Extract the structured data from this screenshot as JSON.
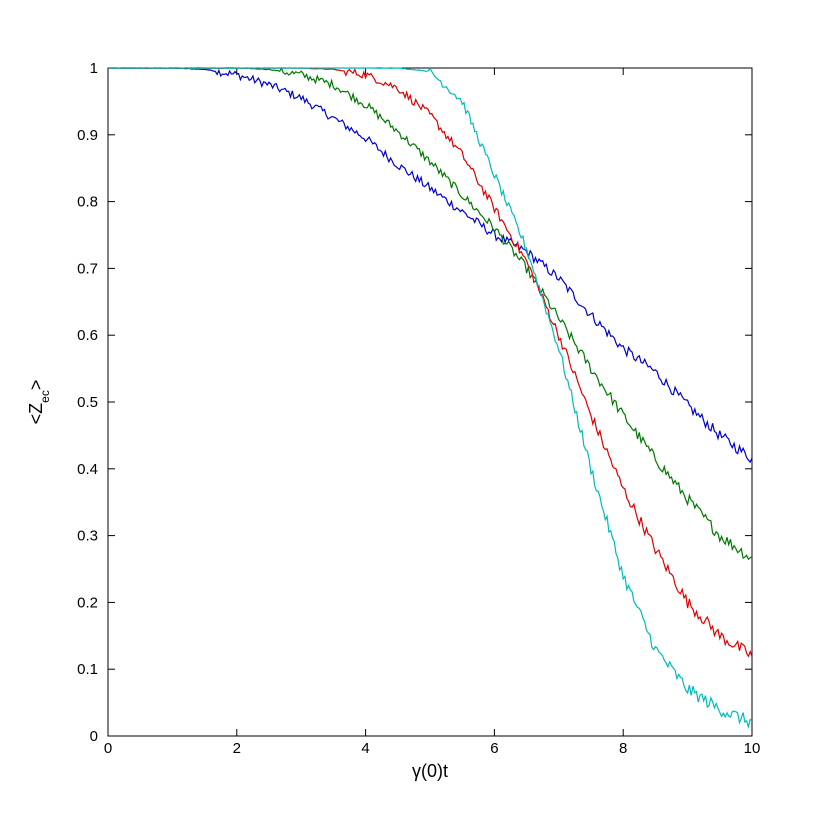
{
  "chart_data": {
    "type": "line",
    "title": "",
    "xlabel": "γ(0)t",
    "ylabel": {
      "main": "<Z",
      "subscript": "ec",
      "close": ">"
    },
    "xlim": [
      0,
      10
    ],
    "ylim": [
      0,
      1
    ],
    "xticks": [
      0,
      2,
      4,
      6,
      8,
      10
    ],
    "yticks": [
      0,
      0.1,
      0.2,
      0.3,
      0.4,
      0.5,
      0.6,
      0.7,
      0.8,
      0.9,
      1
    ],
    "xtick_labels": [
      "0",
      "2",
      "4",
      "6",
      "8",
      "10"
    ],
    "ytick_labels": [
      "0",
      "0.1",
      "0.2",
      "0.3",
      "0.4",
      "0.5",
      "0.6",
      "0.7",
      "0.8",
      "0.9",
      "1"
    ],
    "grid": false,
    "legend": "none",
    "series": [
      {
        "color": "#0000cc",
        "x": [
          0,
          0.5,
          1.0,
          1.5,
          2.0,
          2.5,
          3.0,
          3.5,
          4.0,
          4.5,
          5.0,
          5.5,
          6.0,
          6.5,
          7.0,
          7.5,
          8.0,
          8.5,
          9.0,
          9.5,
          10.0
        ],
        "y": [
          1.0,
          1.0,
          1.0,
          0.998,
          0.99,
          0.975,
          0.955,
          0.925,
          0.895,
          0.855,
          0.82,
          0.785,
          0.75,
          0.725,
          0.685,
          0.63,
          0.58,
          0.545,
          0.495,
          0.45,
          0.415
        ]
      },
      {
        "color": "#007700",
        "x": [
          0,
          1.0,
          2.0,
          2.5,
          3.0,
          3.5,
          4.0,
          4.5,
          5.0,
          5.5,
          6.0,
          6.5,
          7.0,
          7.5,
          8.0,
          8.5,
          9.0,
          9.5,
          10.0
        ],
        "y": [
          1.0,
          1.0,
          1.0,
          0.998,
          0.99,
          0.975,
          0.945,
          0.905,
          0.86,
          0.81,
          0.76,
          0.7,
          0.625,
          0.55,
          0.48,
          0.415,
          0.355,
          0.3,
          0.265
        ]
      },
      {
        "color": "#dd0000",
        "x": [
          0,
          1.0,
          2.0,
          3.0,
          3.5,
          4.0,
          4.5,
          5.0,
          5.5,
          6.0,
          6.5,
          7.0,
          7.5,
          8.0,
          8.5,
          9.0,
          9.5,
          10.0
        ],
        "y": [
          1.0,
          1.0,
          1.0,
          1.0,
          0.998,
          0.99,
          0.97,
          0.93,
          0.87,
          0.79,
          0.71,
          0.6,
          0.48,
          0.37,
          0.28,
          0.2,
          0.15,
          0.12
        ]
      },
      {
        "color": "#00bbbb",
        "x": [
          0,
          1.0,
          2.0,
          3.0,
          4.0,
          4.5,
          5.0,
          5.5,
          6.0,
          6.5,
          7.0,
          7.5,
          8.0,
          8.5,
          9.0,
          9.5,
          10.0
        ],
        "y": [
          1.0,
          1.0,
          1.0,
          1.0,
          1.0,
          1.0,
          0.995,
          0.95,
          0.84,
          0.73,
          0.58,
          0.4,
          0.24,
          0.13,
          0.07,
          0.04,
          0.02
        ]
      }
    ]
  }
}
